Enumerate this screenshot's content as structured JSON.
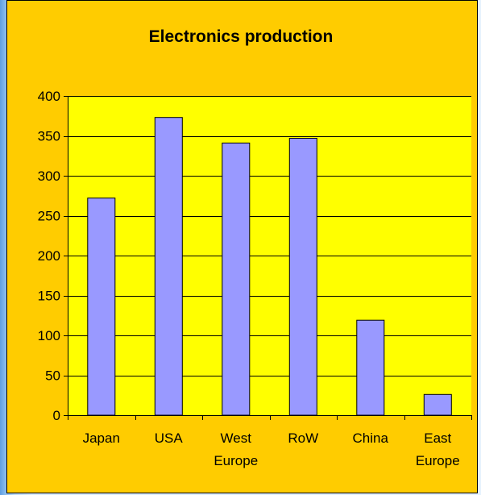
{
  "colors": {
    "chart_area_bg": "#ffcc00",
    "plot_bg": "#ffff00",
    "bar_fill": "#9999ff",
    "bar_stroke": "#000000",
    "grid": "#000000",
    "outer_frame": "#8fc0ef"
  },
  "chart_data": {
    "type": "bar",
    "title": "Electronics production",
    "xlabel": "",
    "ylabel": "",
    "categories": [
      [
        "Japan"
      ],
      [
        "USA"
      ],
      [
        "West",
        "Europe"
      ],
      [
        "RoW"
      ],
      [
        "China"
      ],
      [
        "East",
        "Europe"
      ]
    ],
    "values": [
      272,
      373,
      341,
      347,
      119,
      26
    ],
    "ylim": [
      0,
      400
    ],
    "yticks": [
      0,
      50,
      100,
      150,
      200,
      250,
      300,
      350,
      400
    ],
    "grid": true,
    "legend": false
  }
}
